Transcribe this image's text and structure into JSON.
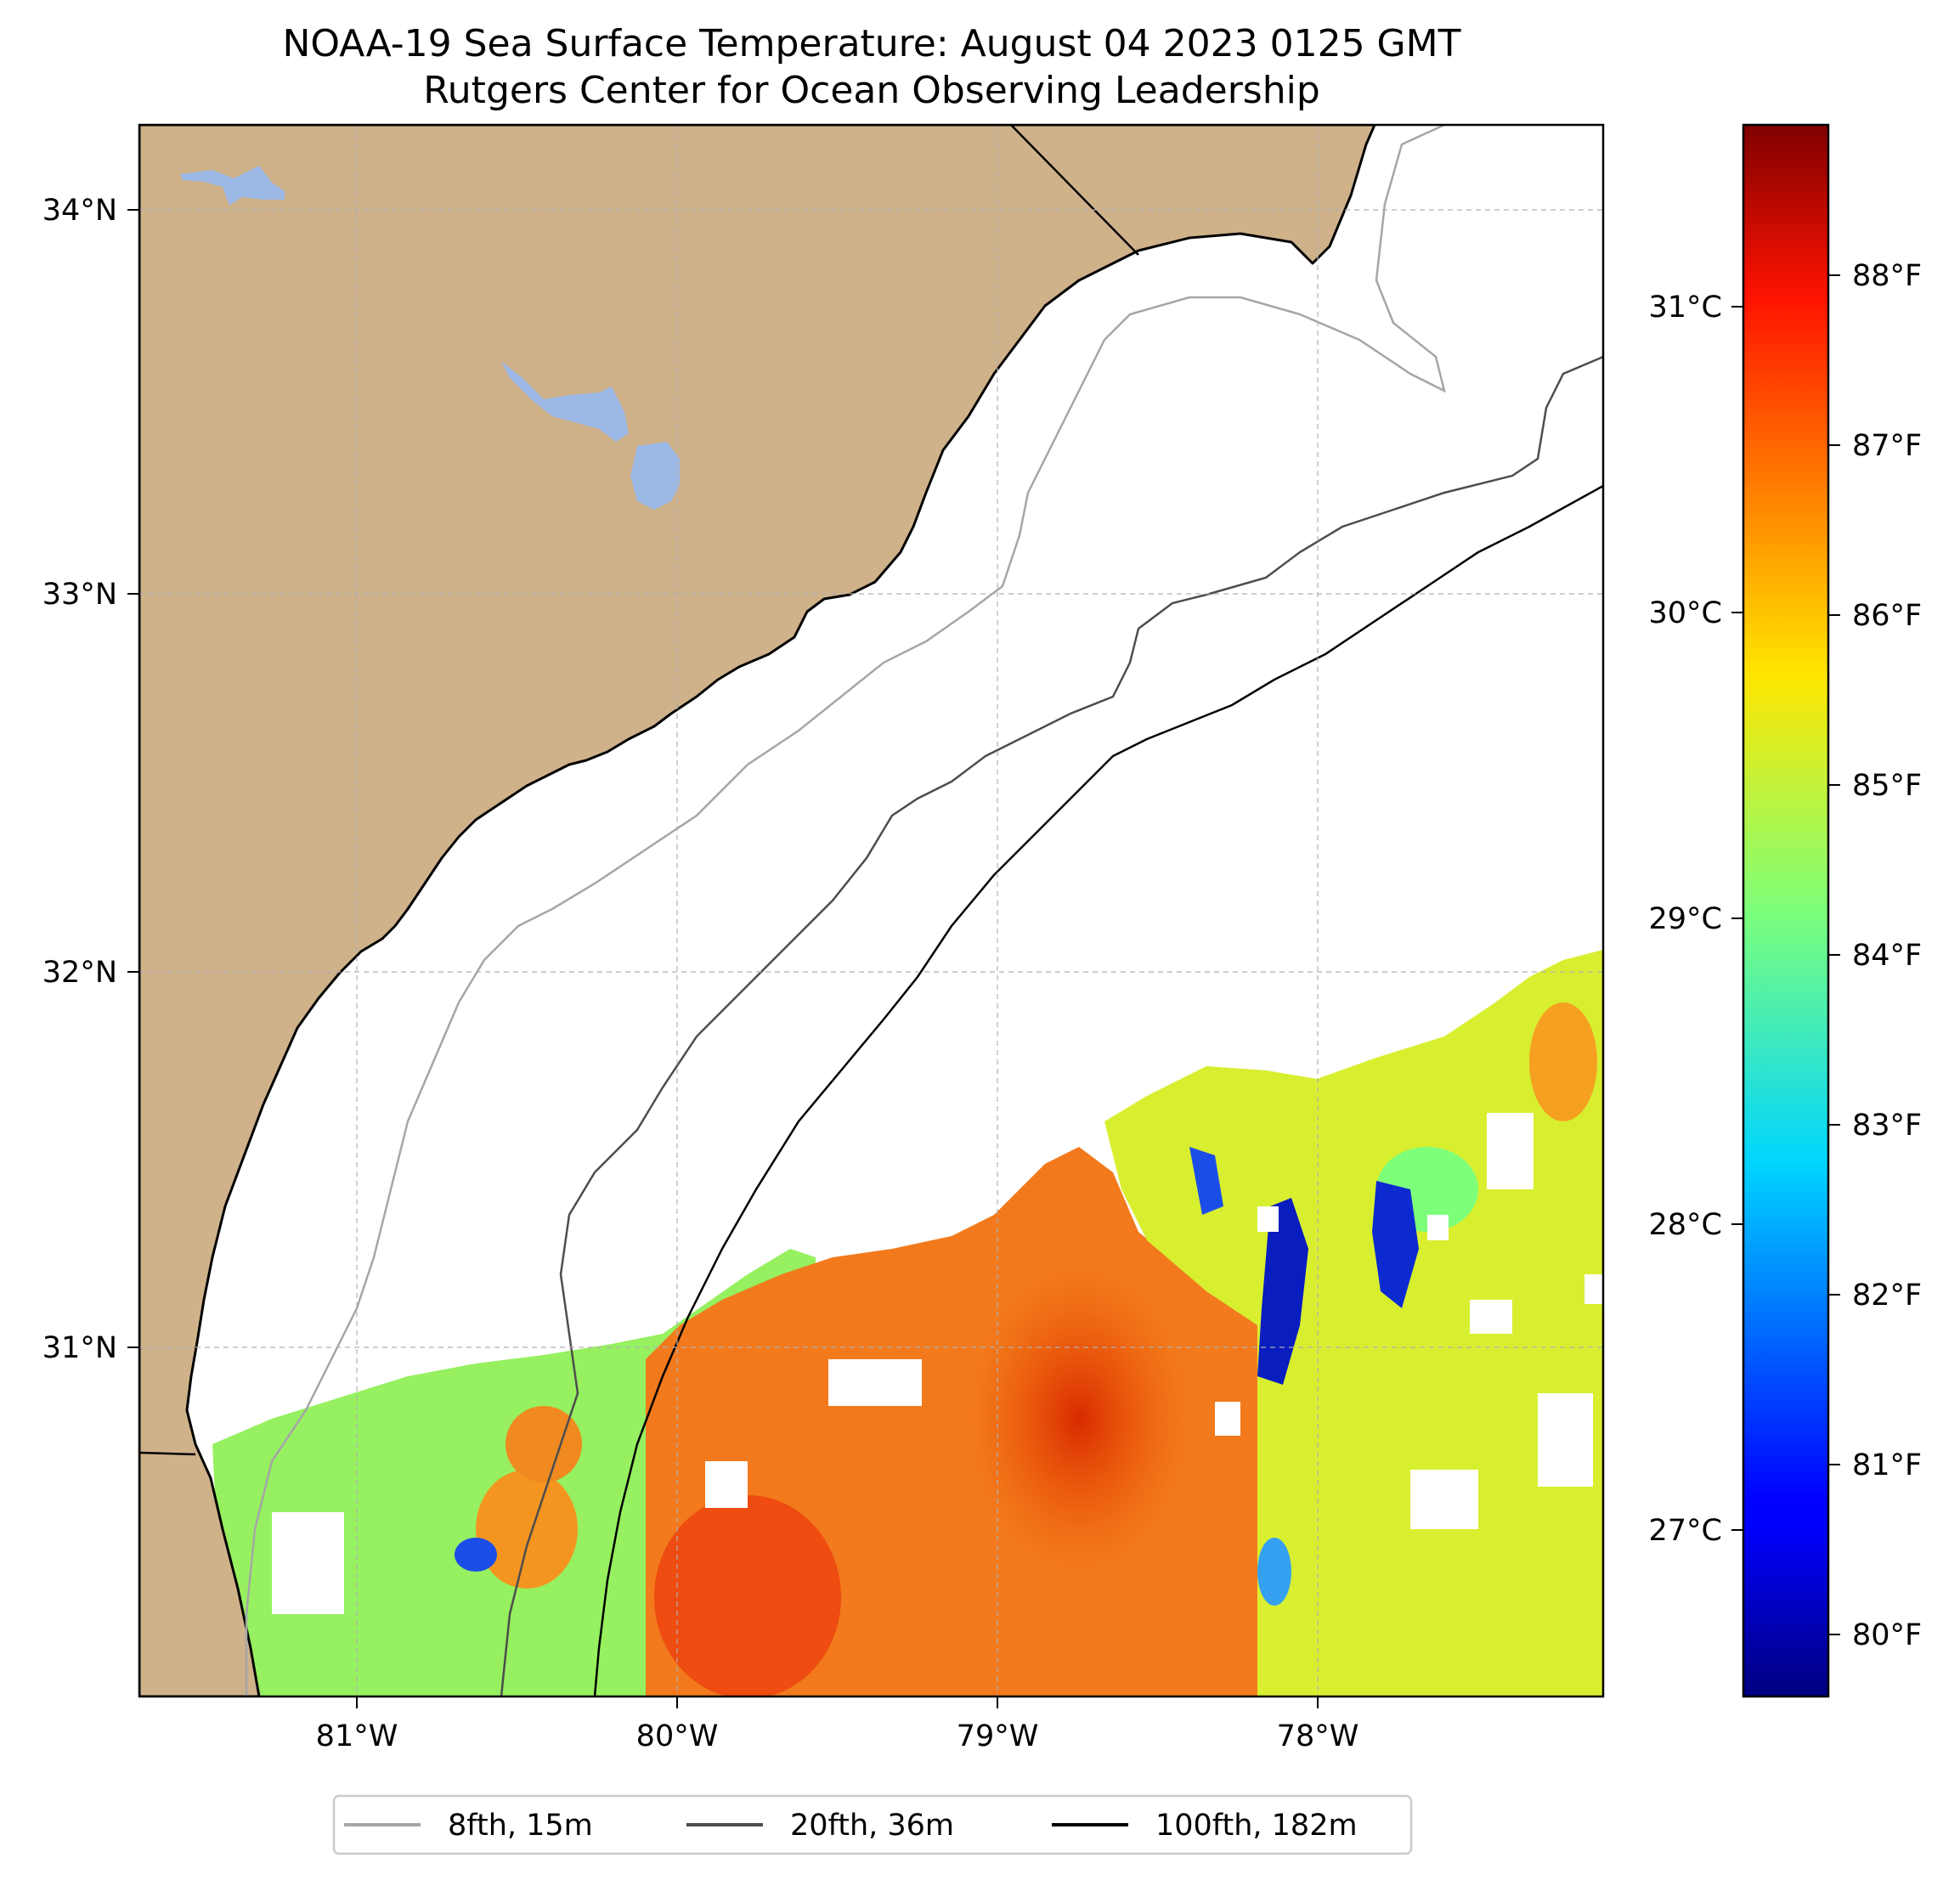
{
  "title": {
    "line1": "NOAA-19 Sea Surface Temperature: August 04 2023 0125 GMT",
    "line2": "Rutgers Center for Ocean Observing Leadership"
  },
  "map": {
    "lon_range": [
      -81.68,
      -77.1
    ],
    "lat_range": [
      30.07,
      34.22
    ],
    "lat_ticks": [
      "34°N",
      "33°N",
      "32°N",
      "31°N"
    ],
    "lon_ticks": [
      "81°W",
      "80°W",
      "79°W",
      "78°W"
    ],
    "colors": {
      "land": "#cfb28a",
      "lake": "#9db9e6",
      "coast": "#000000",
      "contour_8fth": "#a6a6a6",
      "contour_20fth": "#4d4d4d",
      "contour_100fth": "#000000",
      "grid": "#b0b0b0"
    }
  },
  "colorbar": {
    "colormap": "jet",
    "celsius_labels": [
      "31°C",
      "30°C",
      "29°C",
      "28°C",
      "27°C"
    ],
    "fahrenheit_labels": [
      "88°F",
      "87°F",
      "86°F",
      "85°F",
      "84°F",
      "83°F",
      "82°F",
      "81°F",
      "80°F"
    ]
  },
  "legend": {
    "items": [
      {
        "label": "8fth, 15m",
        "color": "#a6a6a6"
      },
      {
        "label": "20fth, 36m",
        "color": "#4d4d4d"
      },
      {
        "label": "100fth, 182m",
        "color": "#000000"
      }
    ]
  }
}
